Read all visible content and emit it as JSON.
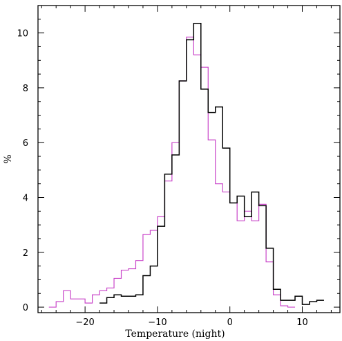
{
  "chart_data": {
    "type": "step",
    "title": "",
    "xlabel": "Temperature (night)",
    "ylabel": "%",
    "xlim": [
      -26.5,
      15.2
    ],
    "ylim": [
      -0.2,
      11.0
    ],
    "x_ticks": [
      -20,
      -10,
      0,
      10
    ],
    "x_tick_labels": [
      "−20",
      "−10",
      "0",
      "10"
    ],
    "y_ticks": [
      0,
      2,
      4,
      6,
      8,
      10
    ],
    "y_tick_labels": [
      "0",
      "2",
      "4",
      "6",
      "8",
      "10"
    ],
    "grid": false,
    "legend": "none",
    "bin_width": 1,
    "series": [
      {
        "color": "#c945c9",
        "bin_edges_start": -25,
        "values": [
          0.0,
          0.2,
          0.6,
          0.3,
          0.3,
          0.15,
          0.45,
          0.6,
          0.7,
          1.05,
          1.35,
          1.4,
          1.7,
          2.65,
          2.8,
          3.3,
          4.6,
          6.0,
          8.25,
          9.85,
          9.2,
          8.75,
          6.1,
          4.5,
          4.2,
          3.8,
          3.15,
          3.5,
          3.15,
          3.75,
          1.65,
          0.45,
          0.05,
          0.0
        ]
      },
      {
        "color": "#000000",
        "bin_edges_start": -18,
        "values": [
          0.15,
          0.35,
          0.45,
          0.4,
          0.4,
          0.45,
          1.15,
          1.5,
          2.95,
          4.85,
          5.55,
          8.25,
          9.75,
          10.35,
          7.95,
          7.1,
          7.3,
          5.8,
          3.8,
          4.05,
          3.3,
          4.2,
          3.7,
          2.15,
          0.65,
          0.25,
          0.25,
          0.4,
          0.1,
          0.2,
          0.25
        ]
      }
    ]
  }
}
